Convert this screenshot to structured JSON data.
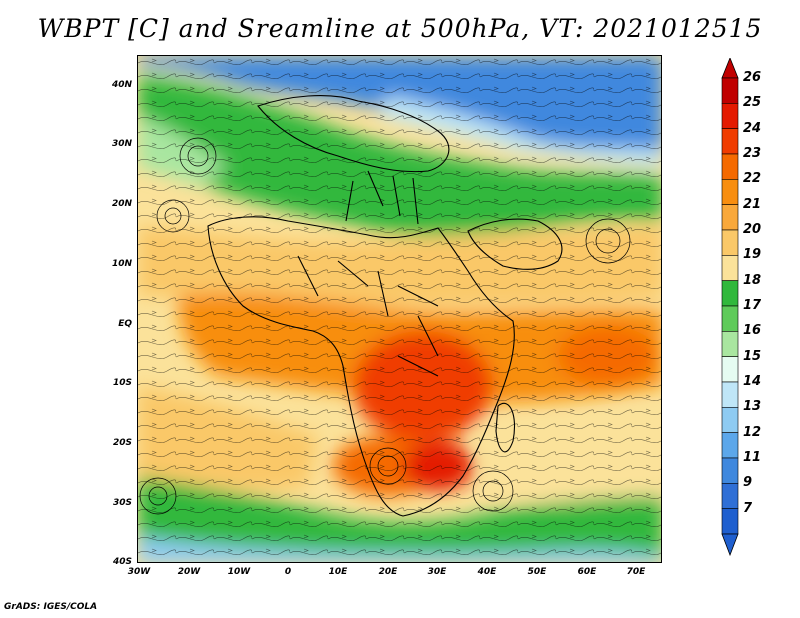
{
  "title": "WBPT [C] and Sreamline at 500hPa, VT: 2021012515",
  "credit": "GrADS: IGES/COLA",
  "lat_labels": [
    "40N",
    "30N",
    "20N",
    "10N",
    "EQ",
    "10S",
    "20S",
    "30S",
    "40S"
  ],
  "lon_labels": [
    "30W",
    "20W",
    "10W",
    "0",
    "10E",
    "20E",
    "30E",
    "40E",
    "50E",
    "60E",
    "70E"
  ],
  "colorbar": {
    "labels": [
      "26",
      "25",
      "24",
      "23",
      "22",
      "21",
      "20",
      "19",
      "18",
      "17",
      "16",
      "15",
      "14",
      "13",
      "12",
      "11",
      "9",
      "7"
    ],
    "colors": [
      "#c00000",
      "#e41a00",
      "#f03c00",
      "#f56a00",
      "#f88e10",
      "#f9a83a",
      "#fac868",
      "#fbe29a",
      "#31b83c",
      "#5fcb5a",
      "#a9e6a0",
      "#e6fcf2",
      "#bfe6f7",
      "#8ecbf2",
      "#5ca7ea",
      "#3f88de",
      "#2f6fd6",
      "#1f5fcf"
    ]
  },
  "field_colors": {
    "cold_blue": "#3f88de",
    "light_blue": "#bfe6f7",
    "green": "#31b83c",
    "light_green": "#a9e6a0",
    "pale_yellow": "#fbe29a",
    "tan": "#fac868",
    "orange": "#f88e10",
    "red_orange": "#f03c00"
  }
}
